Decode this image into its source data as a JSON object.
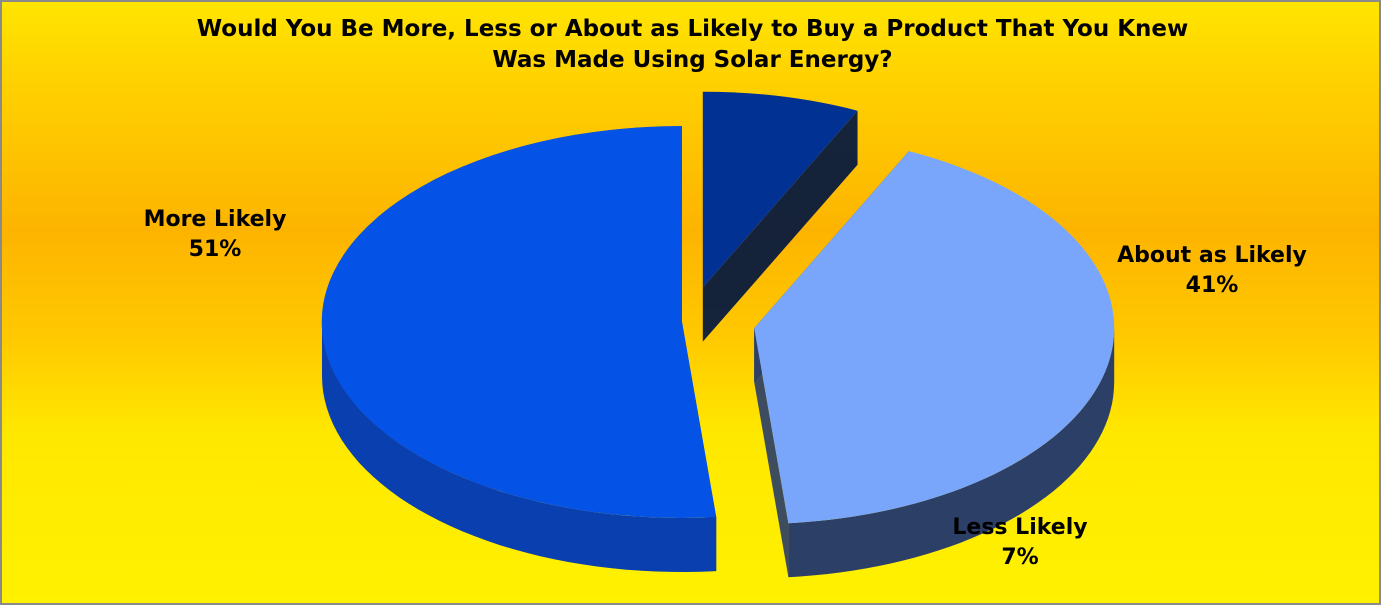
{
  "chart_data": {
    "type": "pie",
    "title_line1": "Would You Be More, Less or About as Likely to Buy a Product That You Knew",
    "title_line2": "Was Made Using Solar Energy?",
    "slices": [
      {
        "label": "More Likely",
        "value": 51,
        "value_label": "51%",
        "color": "#0452e6",
        "side_color": "#0a3fb0",
        "exploded": false
      },
      {
        "label": "Less Likely",
        "value": 7,
        "value_label": "7%",
        "color": "#023194",
        "side_color": "#01163f",
        "exploded": true
      },
      {
        "label": "About as Likely",
        "value": 41,
        "value_label": "41%",
        "color": "#79a6fb",
        "side_color": "#2c3f66",
        "exploded": true
      }
    ],
    "background": "yellow-orange gradient",
    "legend": "none",
    "style": "3d-exploded"
  }
}
